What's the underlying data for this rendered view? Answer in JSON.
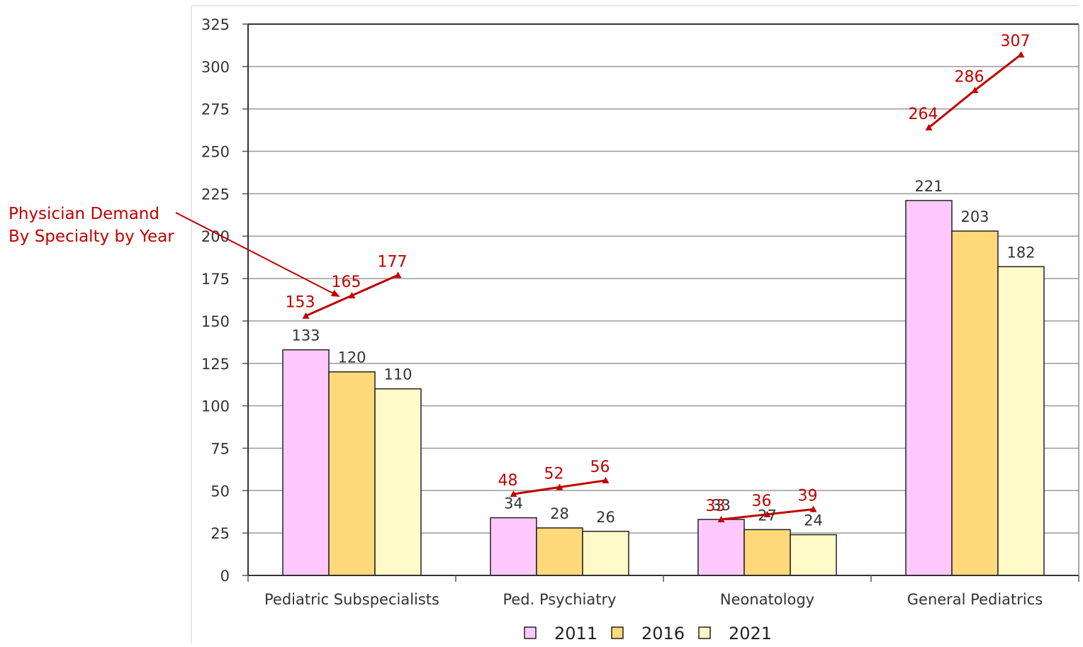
{
  "chart_data": {
    "type": "bar",
    "categories": [
      "Pediatric Subspecialists",
      "Ped. Psychiatry",
      "Neonatology",
      "General Pediatrics"
    ],
    "series": [
      {
        "name": "2011",
        "values": [
          133,
          34,
          33,
          221
        ]
      },
      {
        "name": "2016",
        "values": [
          120,
          28,
          27,
          203
        ]
      },
      {
        "name": "2021",
        "values": [
          110,
          26,
          24,
          182
        ]
      }
    ],
    "demand_lines": [
      {
        "category": "Pediatric Subspecialists",
        "values": [
          153,
          165,
          177
        ]
      },
      {
        "category": "Ped. Psychiatry",
        "values": [
          48,
          52,
          56
        ]
      },
      {
        "category": "Neonatology",
        "values": [
          33,
          36,
          39
        ]
      },
      {
        "category": "General Pediatrics",
        "values": [
          264,
          286,
          307
        ]
      }
    ],
    "ylim": [
      0,
      325
    ],
    "yticks": [
      0,
      25,
      50,
      75,
      100,
      125,
      150,
      175,
      200,
      225,
      250,
      275,
      300,
      325
    ],
    "grid": true,
    "legend_position": "bottom",
    "annotation": {
      "lines": [
        "Physician Demand",
        "By Specialty by Year"
      ]
    },
    "colors": {
      "series": [
        "#FFC8FF",
        "#FFD97A",
        "#FFFAC8"
      ],
      "demand": "#C00000",
      "grid": "#9a9a9a",
      "bar_stroke": "#222222",
      "text": "#333333"
    }
  }
}
